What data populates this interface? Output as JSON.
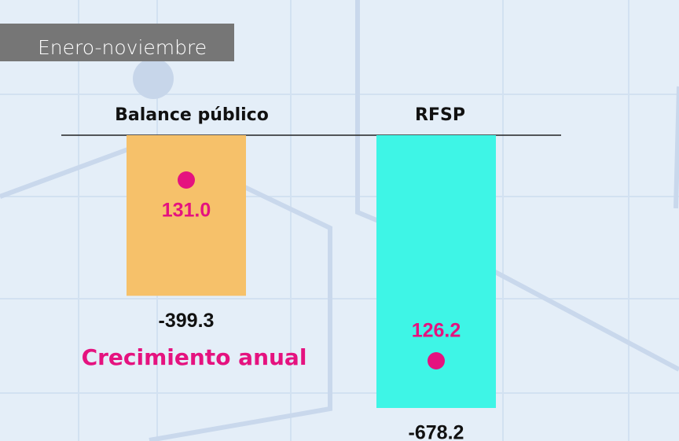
{
  "chart_data": {
    "type": "bar",
    "subtitle": "Enero-noviembre",
    "categories": [
      "Balance público",
      "RFSP"
    ],
    "series": [
      {
        "values": [
          -399.3,
          -678.2
        ],
        "colors": [
          "#f6c16a",
          "#3ef5e6"
        ]
      }
    ],
    "growth": {
      "name": "Crecimiento anual",
      "values": [
        131.0,
        126.2
      ],
      "value_labels": [
        "131.0",
        "126.2"
      ],
      "color": "#e5127f"
    }
  }
}
